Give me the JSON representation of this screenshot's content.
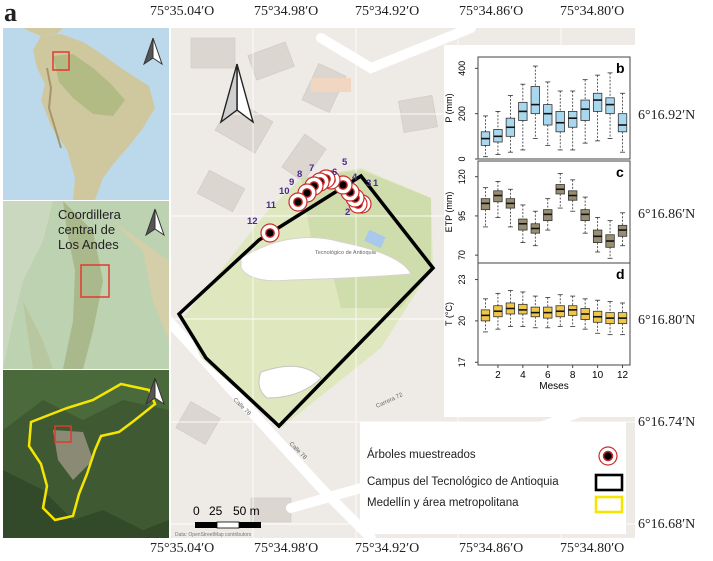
{
  "figure": {
    "panel_label": "a",
    "top_longitudes": [
      "75°35.04′O",
      "75°34.98′O",
      "75°34.92′O",
      "75°34.86′O",
      "75°34.80′O"
    ],
    "bottom_longitudes": [
      "75°35.04′O",
      "75°34.98′O",
      "75°34.92′O",
      "75°34.86′O",
      "75°34.80′O"
    ],
    "latitudes": [
      "6°16.92′N",
      "6°16.86′N",
      "6°16.80′N",
      "6°16.74′N",
      "6°16.68′N"
    ]
  },
  "insets": {
    "middle_label": "Coordillera central de Los Andes",
    "middle_label_lines": [
      "Coordillera",
      "central de",
      "Los Andes"
    ]
  },
  "map": {
    "tree_numbers": [
      "1",
      "2",
      "3",
      "4",
      "5",
      "6",
      "7",
      "8",
      "9",
      "10",
      "11",
      "12"
    ],
    "scale_labels": [
      "0",
      "25",
      "50 m"
    ],
    "street_labels": [
      "Calle 78",
      "Calle 78",
      "Carrera 72"
    ],
    "place_labels": [
      "Tecnológico de Antioquia"
    ],
    "attribution": "Data: OpenStreetMap contributors"
  },
  "legend": {
    "items": [
      {
        "label": "Árboles muestreados",
        "symbol": "tree-marker"
      },
      {
        "label": "Campus del Tecnológico de Antioquia",
        "symbol": "black-box"
      },
      {
        "label": "Medellín y área metropolitana",
        "symbol": "yellow-box"
      }
    ]
  },
  "colors": {
    "campus_outline": "#000000",
    "metro_outline": "#f5e600",
    "tree_marker": "#cc2b2b",
    "box_p": "#a9d8ee",
    "box_etp": "#9a8e72",
    "box_t": "#f0c64a",
    "inset_box": "#e03a2f"
  },
  "chart_data": [
    {
      "panel": "b",
      "type": "box",
      "x": [
        1,
        2,
        3,
        4,
        5,
        6,
        7,
        8,
        9,
        10,
        11,
        12
      ],
      "ylabel": "P (mm)",
      "yticks": [
        0,
        200,
        400
      ],
      "ylim": [
        0,
        450
      ],
      "boxes": [
        {
          "min": 10,
          "q1": 60,
          "median": 90,
          "q3": 120,
          "max": 190
        },
        {
          "min": 20,
          "q1": 75,
          "median": 100,
          "q3": 130,
          "max": 210
        },
        {
          "min": 30,
          "q1": 100,
          "median": 140,
          "q3": 180,
          "max": 280
        },
        {
          "min": 40,
          "q1": 170,
          "median": 210,
          "q3": 250,
          "max": 330
        },
        {
          "min": 90,
          "q1": 200,
          "median": 240,
          "q3": 320,
          "max": 410
        },
        {
          "min": 60,
          "q1": 150,
          "median": 200,
          "q3": 240,
          "max": 340
        },
        {
          "min": 40,
          "q1": 120,
          "median": 160,
          "q3": 210,
          "max": 300
        },
        {
          "min": 40,
          "q1": 140,
          "median": 180,
          "q3": 210,
          "max": 300
        },
        {
          "min": 70,
          "q1": 170,
          "median": 220,
          "q3": 260,
          "max": 350
        },
        {
          "min": 80,
          "q1": 210,
          "median": 260,
          "q3": 290,
          "max": 370
        },
        {
          "min": 90,
          "q1": 200,
          "median": 240,
          "q3": 270,
          "max": 380
        },
        {
          "min": 30,
          "q1": 120,
          "median": 150,
          "q3": 200,
          "max": 290
        }
      ]
    },
    {
      "panel": "c",
      "type": "box",
      "x": [
        1,
        2,
        3,
        4,
        5,
        6,
        7,
        8,
        9,
        10,
        11,
        12
      ],
      "ylabel": "ETP (mm)",
      "yticks": [
        70,
        95,
        120
      ],
      "ylim": [
        65,
        130
      ],
      "boxes": [
        {
          "min": 88,
          "q1": 99,
          "median": 103,
          "q3": 106,
          "max": 113
        },
        {
          "min": 94,
          "q1": 104,
          "median": 108,
          "q3": 111,
          "max": 117
        },
        {
          "min": 88,
          "q1": 100,
          "median": 103,
          "q3": 106,
          "max": 112
        },
        {
          "min": 78,
          "q1": 86,
          "median": 90,
          "q3": 93,
          "max": 102
        },
        {
          "min": 76,
          "q1": 84,
          "median": 87,
          "q3": 90,
          "max": 98
        },
        {
          "min": 86,
          "q1": 92,
          "median": 96,
          "q3": 99,
          "max": 106
        },
        {
          "min": 100,
          "q1": 109,
          "median": 112,
          "q3": 115,
          "max": 122
        },
        {
          "min": 98,
          "q1": 105,
          "median": 108,
          "q3": 111,
          "max": 118
        },
        {
          "min": 84,
          "q1": 92,
          "median": 96,
          "q3": 99,
          "max": 107
        },
        {
          "min": 72,
          "q1": 78,
          "median": 82,
          "q3": 86,
          "max": 94
        },
        {
          "min": 68,
          "q1": 75,
          "median": 79,
          "q3": 83,
          "max": 92
        },
        {
          "min": 76,
          "q1": 82,
          "median": 86,
          "q3": 89,
          "max": 97
        }
      ]
    },
    {
      "panel": "d",
      "type": "box",
      "x": [
        1,
        2,
        3,
        4,
        5,
        6,
        7,
        8,
        9,
        10,
        11,
        12
      ],
      "xticks": [
        2,
        4,
        6,
        8,
        10,
        12
      ],
      "xlabel": "Meses",
      "ylabel": "T (°C)",
      "yticks": [
        17,
        20,
        23
      ],
      "ylim": [
        16.8,
        24.2
      ],
      "boxes": [
        {
          "min": 19.2,
          "q1": 20.0,
          "median": 20.4,
          "q3": 20.8,
          "max": 21.6
        },
        {
          "min": 19.4,
          "q1": 20.3,
          "median": 20.7,
          "q3": 21.1,
          "max": 22.0
        },
        {
          "min": 19.6,
          "q1": 20.5,
          "median": 20.9,
          "q3": 21.3,
          "max": 22.2
        },
        {
          "min": 19.6,
          "q1": 20.5,
          "median": 20.8,
          "q3": 21.2,
          "max": 22.1
        },
        {
          "min": 19.5,
          "q1": 20.3,
          "median": 20.6,
          "q3": 21.0,
          "max": 21.8
        },
        {
          "min": 19.5,
          "q1": 20.2,
          "median": 20.6,
          "q3": 21.0,
          "max": 21.7
        },
        {
          "min": 19.6,
          "q1": 20.3,
          "median": 20.7,
          "q3": 21.1,
          "max": 21.9
        },
        {
          "min": 19.6,
          "q1": 20.4,
          "median": 20.8,
          "q3": 21.1,
          "max": 21.8
        },
        {
          "min": 19.4,
          "q1": 20.1,
          "median": 20.5,
          "q3": 20.9,
          "max": 21.6
        },
        {
          "min": 19.1,
          "q1": 19.9,
          "median": 20.3,
          "q3": 20.7,
          "max": 21.5
        },
        {
          "min": 19.0,
          "q1": 19.8,
          "median": 20.2,
          "q3": 20.6,
          "max": 21.4
        },
        {
          "min": 19.0,
          "q1": 19.8,
          "median": 20.2,
          "q3": 20.6,
          "max": 21.3
        }
      ]
    }
  ]
}
